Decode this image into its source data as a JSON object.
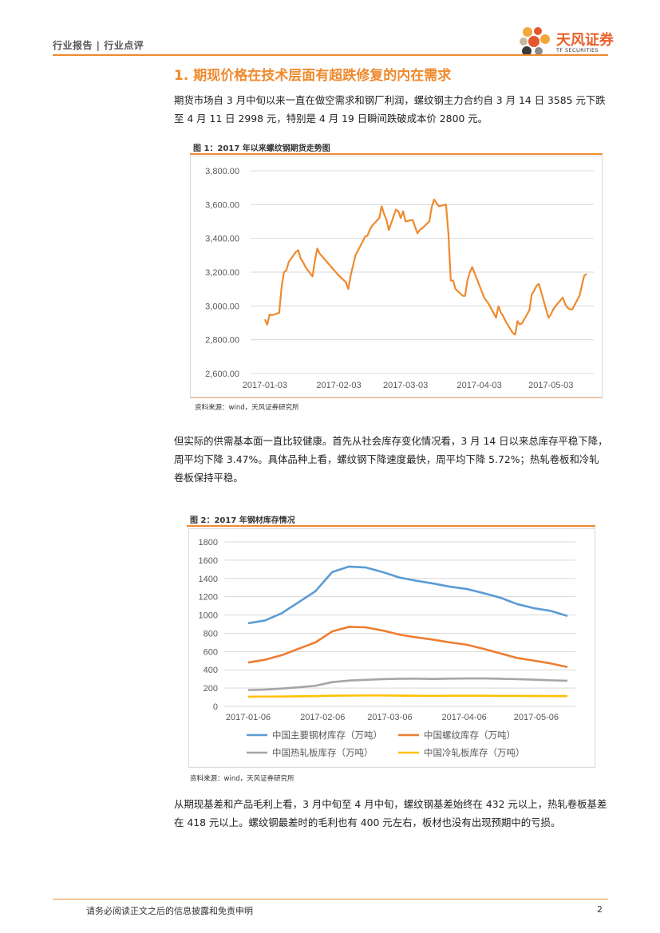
{
  "header": {
    "left_label": "行业报告 | 行业点评",
    "brand_cn": "天风证券",
    "brand_en": "TF SECURITIES"
  },
  "section": {
    "title": "1. 期现价格在技术层面有超跌修复的内在需求"
  },
  "paragraphs": {
    "p1": "期货市场自 3 月中旬以来一直在做空需求和钢厂利润，螺纹钢主力合约自 3 月 14 日 3585 元下跌至 4 月 11 日 2998 元，特别是 4 月 19 日瞬间跌破成本价 2800 元。",
    "p2": "但实际的供需基本面一直比较健康。首先从社会库存变化情况看，3 月 14 日以来总库存平稳下降，周平均下降 3.47%。具体品种上看，螺纹钢下降速度最快，周平均下降 5.72%；热轧卷板和冷轧卷板保持平稳。",
    "p3": "从期现基差和产品毛利上看，3 月中旬至 4 月中旬，螺纹钢基差始终在 432 元以上，热轧卷板基差在 418 元以上。螺纹钢最差时的毛利也有 400 元左右，板材也没有出现预期中的亏损。"
  },
  "figure1": {
    "caption": "图 1：2017 年以来螺纹钢期货走势图",
    "source": "资料来源：wind，天风证券研究所"
  },
  "figure2": {
    "caption": "图 2：2017 年钢材库存情况",
    "source": "资料来源：wind，天风证券研究所"
  },
  "footer": {
    "disclaimer": "请务必阅读正文之后的信息披露和免责申明",
    "page_number": "2"
  },
  "chart_data": [
    {
      "type": "line",
      "title": "",
      "xlabel": "",
      "ylabel": "",
      "ylim": [
        2600,
        3800
      ],
      "y_ticks": [
        "2,600.00",
        "2,800.00",
        "3,000.00",
        "3,200.00",
        "3,400.00",
        "3,600.00",
        "3,800.00"
      ],
      "x_ticks": [
        "2017-01-03",
        "2017-02-03",
        "2017-03-03",
        "2017-04-03",
        "2017-05-03"
      ],
      "grid": true,
      "legend": "none",
      "color": "#ef8a2e",
      "series": [
        {
          "x": [
            "2017-01-03",
            "2017-01-04",
            "2017-01-05",
            "2017-01-06",
            "2017-01-09",
            "2017-01-10",
            "2017-01-11",
            "2017-01-12",
            "2017-01-13",
            "2017-01-16",
            "2017-01-17",
            "2017-01-18",
            "2017-01-19",
            "2017-01-20",
            "2017-01-23",
            "2017-01-24",
            "2017-01-25",
            "2017-01-26",
            "2017-02-03",
            "2017-02-06",
            "2017-02-07",
            "2017-02-08",
            "2017-02-09",
            "2017-02-10",
            "2017-02-13",
            "2017-02-14",
            "2017-02-15",
            "2017-02-16",
            "2017-02-17",
            "2017-02-20",
            "2017-02-21",
            "2017-02-22",
            "2017-02-23",
            "2017-02-24",
            "2017-02-27",
            "2017-02-28",
            "2017-03-01",
            "2017-03-02",
            "2017-03-03",
            "2017-03-06",
            "2017-03-07",
            "2017-03-08",
            "2017-03-09",
            "2017-03-10",
            "2017-03-13",
            "2017-03-14",
            "2017-03-15",
            "2017-03-16",
            "2017-03-17",
            "2017-03-20",
            "2017-03-21",
            "2017-03-22",
            "2017-03-23",
            "2017-03-24",
            "2017-03-27",
            "2017-03-28",
            "2017-03-29",
            "2017-03-30",
            "2017-03-31",
            "2017-04-05",
            "2017-04-06",
            "2017-04-07",
            "2017-04-10",
            "2017-04-11",
            "2017-04-12",
            "2017-04-13",
            "2017-04-14",
            "2017-04-17",
            "2017-04-18",
            "2017-04-19",
            "2017-04-20",
            "2017-04-21",
            "2017-04-24",
            "2017-04-25",
            "2017-04-26",
            "2017-04-27",
            "2017-04-28",
            "2017-05-02",
            "2017-05-03",
            "2017-05-04",
            "2017-05-05",
            "2017-05-08",
            "2017-05-09",
            "2017-05-10",
            "2017-05-11",
            "2017-05-12",
            "2017-05-15",
            "2017-05-16",
            "2017-05-17",
            "2017-05-18"
          ],
          "values": [
            2920,
            2890,
            2950,
            2945,
            2960,
            3110,
            3200,
            3210,
            3260,
            3320,
            3330,
            3280,
            3260,
            3230,
            3175,
            3270,
            3340,
            3310,
            3180,
            3140,
            3100,
            3180,
            3240,
            3300,
            3380,
            3410,
            3415,
            3450,
            3475,
            3520,
            3590,
            3545,
            3510,
            3450,
            3570,
            3560,
            3520,
            3560,
            3500,
            3510,
            3470,
            3430,
            3450,
            3460,
            3500,
            3585,
            3630,
            3610,
            3590,
            3600,
            3430,
            3150,
            3150,
            3100,
            3060,
            3060,
            3150,
            3200,
            3230,
            3050,
            3030,
            3010,
            2930,
            2998,
            2960,
            2940,
            2910,
            2840,
            2830,
            2910,
            2890,
            2900,
            2975,
            3070,
            3090,
            3120,
            3130,
            2930,
            2950,
            2980,
            3000,
            3050,
            3010,
            2990,
            2980,
            2980,
            3060,
            3120,
            3180,
            3190
          ]
        }
      ]
    },
    {
      "type": "line",
      "title": "",
      "xlabel": "",
      "ylabel": "",
      "ylim": [
        0,
        1800
      ],
      "y_ticks": [
        "0",
        "200",
        "400",
        "600",
        "800",
        "1000",
        "1200",
        "1400",
        "1600",
        "1800"
      ],
      "x_ticks": [
        "2017-01-06",
        "2017-02-06",
        "2017-03-06",
        "2017-04-06",
        "2017-05-06"
      ],
      "grid": true,
      "legend": "bottom",
      "x": [
        "2017-01-06",
        "2017-01-13",
        "2017-01-20",
        "2017-01-27",
        "2017-02-03",
        "2017-02-10",
        "2017-02-17",
        "2017-02-24",
        "2017-03-03",
        "2017-03-10",
        "2017-03-17",
        "2017-03-24",
        "2017-03-31",
        "2017-04-07",
        "2017-04-14",
        "2017-04-21",
        "2017-04-28",
        "2017-05-05",
        "2017-05-12",
        "2017-05-19"
      ],
      "series": [
        {
          "name": "中国主要钢材库存（万吨）",
          "color": "#5b9bd5",
          "values": [
            910,
            940,
            1020,
            1140,
            1260,
            1470,
            1530,
            1520,
            1470,
            1410,
            1375,
            1345,
            1310,
            1285,
            1240,
            1190,
            1120,
            1075,
            1045,
            990
          ]
        },
        {
          "name": "中国螺纹库存（万吨）",
          "color": "#ed7d31",
          "values": [
            480,
            510,
            560,
            630,
            700,
            820,
            870,
            865,
            830,
            785,
            755,
            730,
            700,
            675,
            630,
            580,
            530,
            500,
            470,
            430
          ]
        },
        {
          "name": "中国热轧板库存（万吨）",
          "color": "#a5a5a5",
          "values": [
            178,
            183,
            195,
            208,
            225,
            265,
            282,
            290,
            298,
            302,
            303,
            300,
            303,
            305,
            305,
            302,
            298,
            292,
            285,
            280
          ]
        },
        {
          "name": "中国冷轧板库存（万吨）",
          "color": "#ffc000",
          "values": [
            105,
            107,
            108,
            110,
            112,
            116,
            118,
            119,
            119,
            117,
            115,
            114,
            115,
            115,
            115,
            114,
            114,
            113,
            113,
            112
          ]
        }
      ]
    }
  ]
}
